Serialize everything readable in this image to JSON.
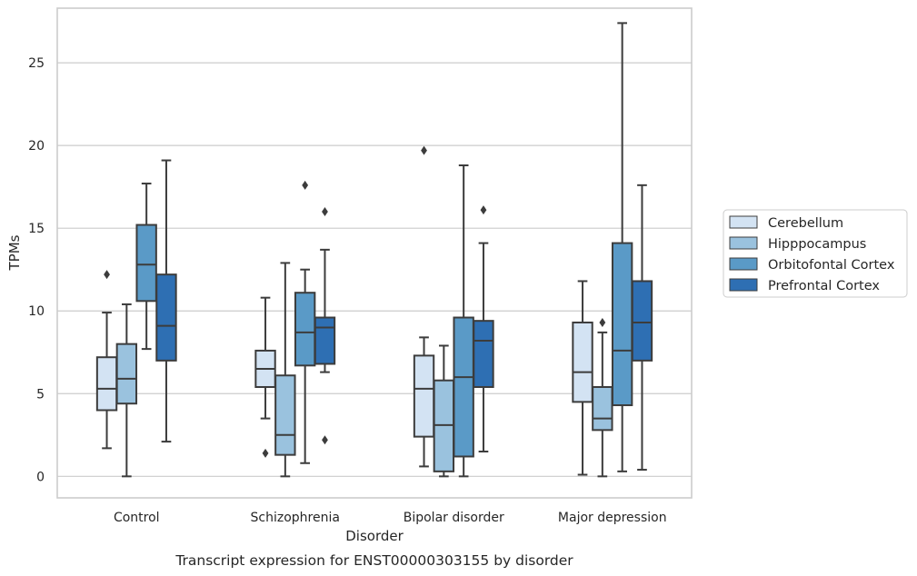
{
  "chart_data": {
    "type": "box",
    "caption": "Transcript expression for ENST00000303155 by disorder",
    "xlabel": "Disorder",
    "ylabel": "TPMs",
    "ylim": [
      -1.3,
      28.3
    ],
    "yticks": [
      0,
      5,
      10,
      15,
      20,
      25
    ],
    "grid": true,
    "legend_position": "right",
    "categories": [
      "Control",
      "Schizophrenia",
      "Bipolar disorder",
      "Major depression"
    ],
    "series": [
      {
        "name": "Cerebellum",
        "color": "#d3e3f3",
        "boxes": [
          {
            "whislo": 1.7,
            "q1": 4.0,
            "med": 5.3,
            "q3": 7.2,
            "whishi": 9.9,
            "fliers": [
              12.2
            ]
          },
          {
            "whislo": 3.5,
            "q1": 5.4,
            "med": 6.5,
            "q3": 7.6,
            "whishi": 10.8,
            "fliers": [
              1.4
            ]
          },
          {
            "whislo": 0.6,
            "q1": 2.4,
            "med": 5.3,
            "q3": 7.3,
            "whishi": 8.4,
            "fliers": [
              19.7
            ]
          },
          {
            "whislo": 0.1,
            "q1": 4.5,
            "med": 6.3,
            "q3": 9.3,
            "whishi": 11.8,
            "fliers": []
          }
        ]
      },
      {
        "name": "Hipppocampus",
        "color": "#9ac2de",
        "boxes": [
          {
            "whislo": 0.0,
            "q1": 4.4,
            "med": 5.9,
            "q3": 8.0,
            "whishi": 10.4,
            "fliers": []
          },
          {
            "whislo": 0.0,
            "q1": 1.3,
            "med": 2.5,
            "q3": 6.1,
            "whishi": 12.9,
            "fliers": []
          },
          {
            "whislo": 0.0,
            "q1": 0.3,
            "med": 3.1,
            "q3": 5.8,
            "whishi": 7.9,
            "fliers": []
          },
          {
            "whislo": 0.0,
            "q1": 2.8,
            "med": 3.5,
            "q3": 5.4,
            "whishi": 8.7,
            "fliers": [
              9.3
            ]
          }
        ]
      },
      {
        "name": "Orbitofontal Cortex",
        "color": "#5a9ac7",
        "boxes": [
          {
            "whislo": 7.7,
            "q1": 10.6,
            "med": 12.8,
            "q3": 15.2,
            "whishi": 17.7,
            "fliers": []
          },
          {
            "whislo": 0.8,
            "q1": 6.7,
            "med": 8.7,
            "q3": 11.1,
            "whishi": 12.5,
            "fliers": [
              17.6
            ]
          },
          {
            "whislo": 0.0,
            "q1": 1.2,
            "med": 6.0,
            "q3": 9.6,
            "whishi": 18.8,
            "fliers": []
          },
          {
            "whislo": 0.3,
            "q1": 4.3,
            "med": 7.6,
            "q3": 14.1,
            "whishi": 27.4,
            "fliers": []
          }
        ]
      },
      {
        "name": "Prefrontal Cortex",
        "color": "#2e6fb3",
        "boxes": [
          {
            "whislo": 2.1,
            "q1": 7.0,
            "med": 9.1,
            "q3": 12.2,
            "whishi": 19.1,
            "fliers": []
          },
          {
            "whislo": 6.3,
            "q1": 6.8,
            "med": 9.0,
            "q3": 9.6,
            "whishi": 13.7,
            "fliers": [
              16.0,
              2.2
            ]
          },
          {
            "whislo": 1.5,
            "q1": 5.4,
            "med": 8.2,
            "q3": 9.4,
            "whishi": 14.1,
            "fliers": [
              16.1
            ]
          },
          {
            "whislo": 0.4,
            "q1": 7.0,
            "med": 9.3,
            "q3": 11.8,
            "whishi": 17.6,
            "fliers": []
          }
        ]
      }
    ]
  }
}
